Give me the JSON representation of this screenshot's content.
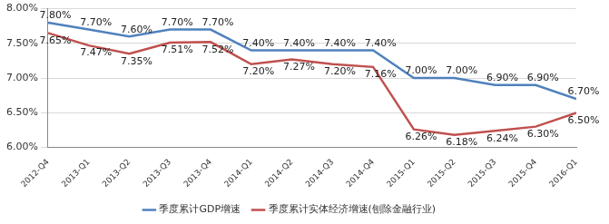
{
  "chart_data": {
    "type": "line",
    "categories": [
      "2012-Q4",
      "2013-Q1",
      "2013-Q2",
      "2013-Q3",
      "2013-Q4",
      "2014-Q1",
      "2014-Q2",
      "2014-Q3",
      "2014-Q4",
      "2015-Q1",
      "2015-Q2",
      "2015-Q3",
      "2015-Q4",
      "2016-Q1"
    ],
    "series": [
      {
        "name": "季度累计GDP增速",
        "color": "#4f81bd",
        "marker": "none",
        "values": [
          7.8,
          7.7,
          7.6,
          7.7,
          7.7,
          7.4,
          7.4,
          7.4,
          7.4,
          7.0,
          7.0,
          6.9,
          6.9,
          6.7
        ],
        "value_labels": [
          "7.80%",
          "7.70%",
          "7.60%",
          "7.70%",
          "7.70%",
          "7.40%",
          "7.40%",
          "7.40%",
          "7.40%",
          "7.00%",
          "7.00%",
          "6.90%",
          "6.90%",
          "6.70%"
        ]
      },
      {
        "name": "季度累计实体经济增速(刨除金融行业)",
        "color": "#c0504d",
        "marker": "none",
        "values": [
          7.65,
          7.47,
          7.35,
          7.51,
          7.52,
          7.2,
          7.27,
          7.2,
          7.16,
          6.26,
          6.18,
          6.24,
          6.3,
          6.5
        ],
        "value_labels": [
          "7.65%",
          "7.47%",
          "7.35%",
          "7.51%",
          "7.52%",
          "7.20%",
          "7.27%",
          "7.20%",
          "7.16%",
          "6.26%",
          "6.18%",
          "6.24%",
          "6.30%",
          "6.50%"
        ]
      }
    ],
    "ylim": [
      6.0,
      8.0
    ],
    "yticks": [
      {
        "value": 6.0,
        "label": "6.00%"
      },
      {
        "value": 6.5,
        "label": "6.50%"
      },
      {
        "value": 7.0,
        "label": "7.00%"
      },
      {
        "value": 7.5,
        "label": "7.50%"
      },
      {
        "value": 8.0,
        "label": "8.00%"
      }
    ],
    "grid": true,
    "legend": "bottom",
    "data_labels": true
  }
}
